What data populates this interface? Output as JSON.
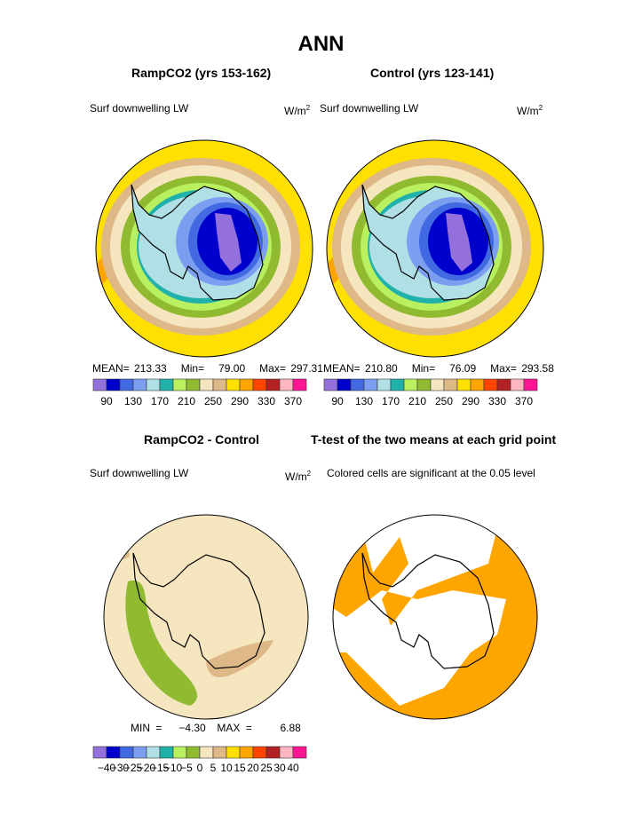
{
  "main_title": "ANN",
  "panels": [
    {
      "title": "RampCO2 (yrs 153-162)",
      "left_label": "Surf downwelling LW",
      "units": "W/m",
      "units_sup": "2",
      "stats": {
        "mean_label": "MEAN=",
        "mean": "213.33",
        "min_label": "Min=",
        "min": "79.00",
        "max_label": "Max=",
        "max": "297.31"
      }
    },
    {
      "title": "Control (yrs 123-141)",
      "left_label": "Surf downwelling LW",
      "units": "W/m",
      "units_sup": "2",
      "stats": {
        "mean_label": "MEAN=",
        "mean": "210.80",
        "min_label": "Min=",
        "min": "76.09",
        "max_label": "Max=",
        "max": "293.58"
      }
    },
    {
      "title": "RampCO2 - Control",
      "left_label": "Surf downwelling LW",
      "units": "W/m",
      "units_sup": "2",
      "stats": {
        "min_label": "MIN =",
        "min": "−4.30",
        "max_label": "MAX =",
        "max": "6.88"
      }
    },
    {
      "title": "T-test of the two means at each grid point",
      "left_label": "Colored cells are significant at the 0.05 level"
    }
  ],
  "colorbar_colors": [
    "#9370db",
    "#0000cd",
    "#4169e1",
    "#7b9ef0",
    "#b0e0e6",
    "#20b2aa",
    "#b9f060",
    "#90bb30",
    "#f5e6c0",
    "#deb887",
    "#ffe000",
    "#ffa500",
    "#ff4500",
    "#b22222",
    "#ffb6c1",
    "#ff1493"
  ],
  "colorbar_top_labels": [
    "90",
    "130",
    "170",
    "210",
    "250",
    "290",
    "330",
    "370"
  ],
  "colorbar_diff_labels": [
    "−40",
    "−30",
    "−25",
    "−20",
    "−15",
    "−10",
    "−5",
    "0",
    "5",
    "10",
    "15",
    "20",
    "25",
    "30",
    "40"
  ],
  "significance_color": "#ffa500"
}
